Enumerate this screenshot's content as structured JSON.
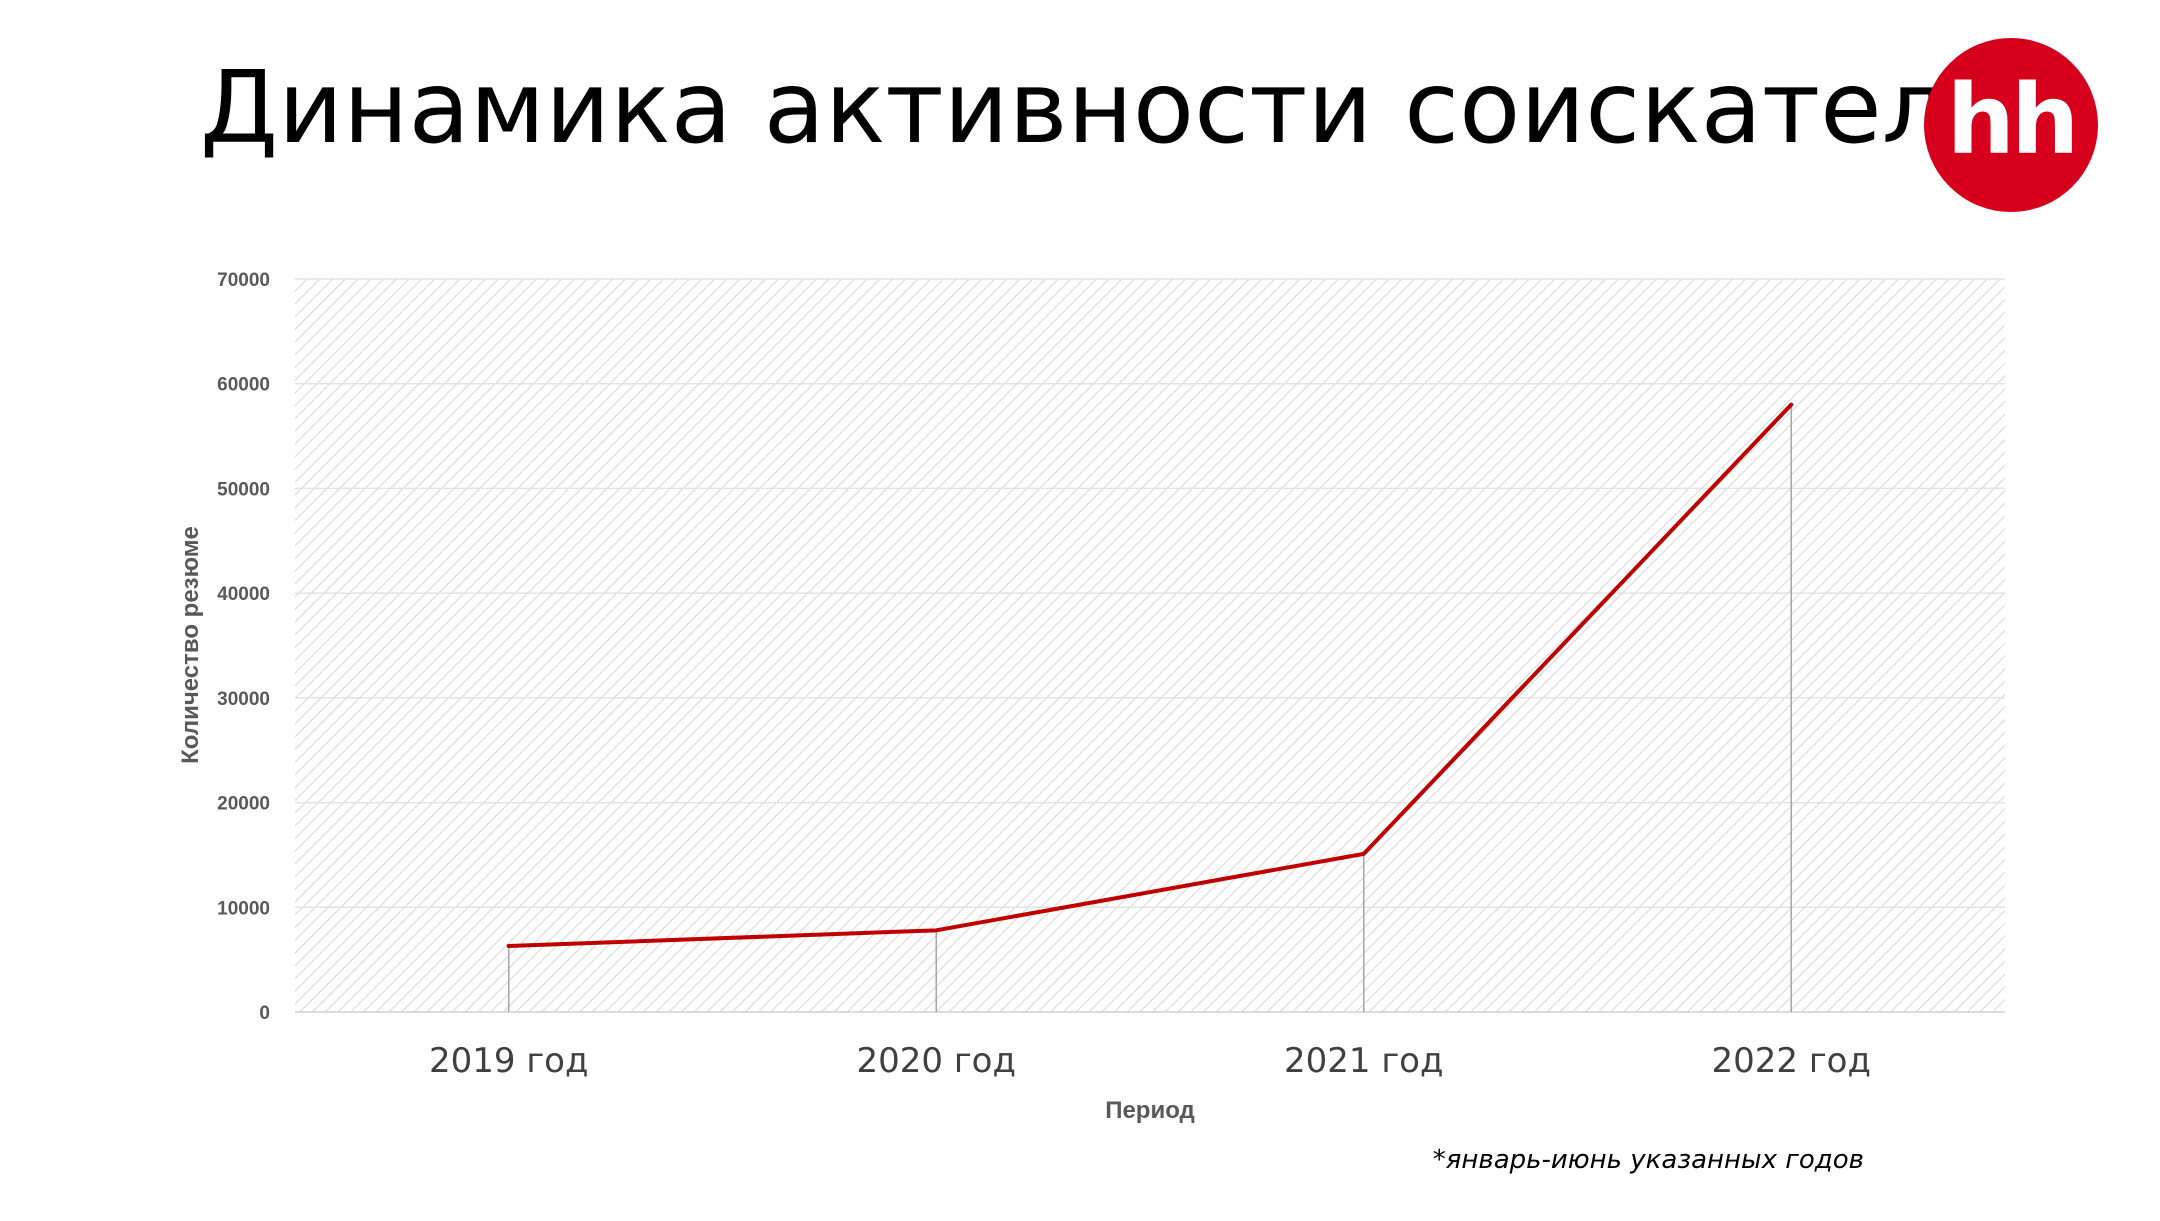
{
  "slide": {
    "title": "Динамика активности соискателей",
    "logo_text": "hh",
    "footnote": "*январь-июнь указанных годов"
  },
  "colors": {
    "line": "#c00000",
    "logo": "#d6001c",
    "hatch": "#d9d9d9",
    "gridline": "#e3e3e3",
    "dropline": "#a6a6a6"
  },
  "chart_data": {
    "type": "line",
    "categories": [
      "2019 год",
      "2020 год",
      "2021 год",
      "2022 год"
    ],
    "series": [
      {
        "values": [
          6300,
          7800,
          15100,
          58000
        ]
      }
    ],
    "xlabel": "Период",
    "ylabel": "Количество резюме",
    "ylim": [
      0,
      70000
    ],
    "yticks": [
      0,
      10000,
      20000,
      30000,
      40000,
      50000,
      60000,
      70000
    ],
    "grid": true,
    "drop_lines": true,
    "legend": "none"
  }
}
